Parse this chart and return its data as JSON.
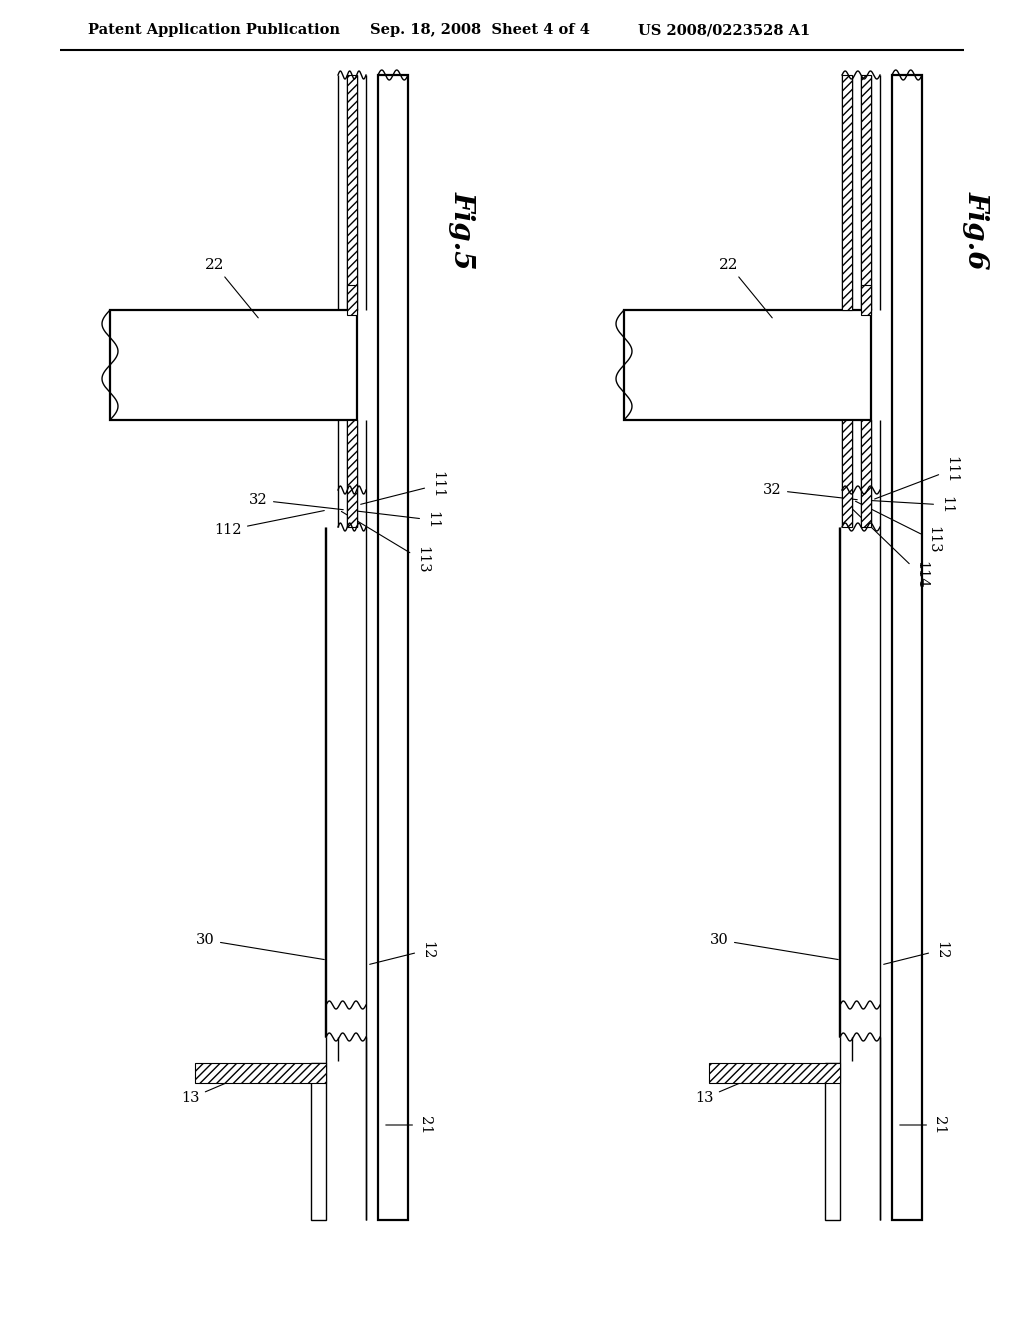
{
  "header_left": "Patent Application Publication",
  "header_mid": "Sep. 18, 2008  Sheet 4 of 4",
  "header_right": "US 2008/0223528 A1",
  "fig5_label": "Fig.5",
  "fig6_label": "Fig.6",
  "bg_color": "#ffffff",
  "line_color": "#000000"
}
